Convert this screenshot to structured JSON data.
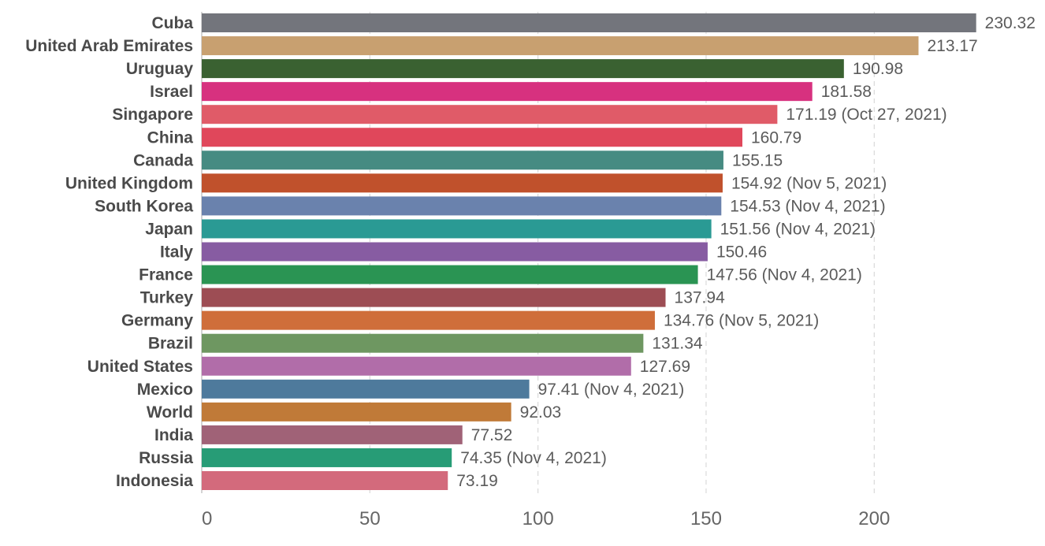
{
  "chart_data": {
    "type": "bar",
    "orientation": "horizontal",
    "xlim": [
      0,
      230
    ],
    "x_ticks": [
      0,
      50,
      100,
      150,
      200
    ],
    "grid": "vertical dashed",
    "categories": [
      "Cuba",
      "United Arab Emirates",
      "Uruguay",
      "Israel",
      "Singapore",
      "China",
      "Canada",
      "United Kingdom",
      "South Korea",
      "Japan",
      "Italy",
      "France",
      "Turkey",
      "Germany",
      "Brazil",
      "United States",
      "Mexico",
      "World",
      "India",
      "Russia",
      "Indonesia"
    ],
    "values": [
      230.32,
      213.17,
      190.98,
      181.58,
      171.19,
      160.79,
      155.15,
      154.92,
      154.53,
      151.56,
      150.46,
      147.56,
      137.94,
      134.76,
      131.34,
      127.69,
      97.41,
      92.03,
      77.52,
      74.35,
      73.19
    ],
    "value_labels": [
      "230.32",
      "213.17",
      "190.98",
      "181.58",
      "171.19 (Oct 27, 2021)",
      "160.79",
      "155.15",
      "154.92 (Nov 5, 2021)",
      "154.53 (Nov 4, 2021)",
      "151.56 (Nov 4, 2021)",
      "150.46",
      "147.56 (Nov 4, 2021)",
      "137.94",
      "134.76 (Nov 5, 2021)",
      "131.34",
      "127.69",
      "97.41 (Nov 4, 2021)",
      "92.03",
      "77.52",
      "74.35 (Nov 4, 2021)",
      "73.19"
    ],
    "colors": [
      "#73757c",
      "#c8a070",
      "#3a6131",
      "#d7317f",
      "#e05b68",
      "#e0475b",
      "#468b82",
      "#c0512c",
      "#6a82ad",
      "#2a9a94",
      "#875ca2",
      "#2a9453",
      "#9d4d54",
      "#cf6e3a",
      "#6e9761",
      "#b16da9",
      "#4e7a9c",
      "#c07a38",
      "#a06277",
      "#279c76",
      "#d36a7c"
    ],
    "title": "",
    "xlabel": "",
    "ylabel": ""
  }
}
